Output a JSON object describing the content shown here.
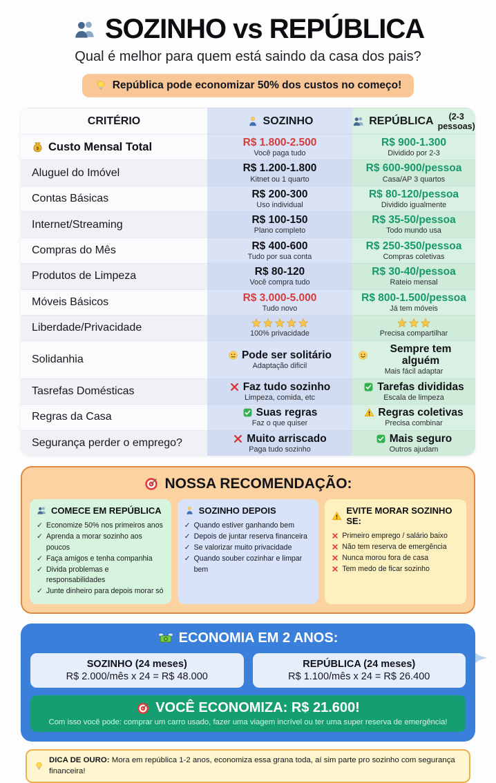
{
  "header": {
    "title_icon": "people-icon",
    "title": "SOZINHO vs REPÚBLICA",
    "subtitle": "Qual é melhor para quem está saindo da casa dos pais?",
    "badge_icon": "lightbulb-icon",
    "badge": "República pode economizar 50% dos custos no começo!"
  },
  "table": {
    "columns": [
      {
        "label": "CRITÉRIO"
      },
      {
        "label": "SOZINHO",
        "icon": "person-icon"
      },
      {
        "label": "REPÚBLICA",
        "suffix": "(2-3 pessoas)",
        "icon": "people-icon"
      }
    ],
    "rows": [
      {
        "criterion": "Custo Mensal Total",
        "criterion_icon": "money-bag-icon",
        "bold": true,
        "sozinho": {
          "value": "R$ 1.800-2.500",
          "style": "red",
          "note": "Você paga tudo"
        },
        "republica": {
          "value": "R$ 900-1.300",
          "style": "green",
          "note": "Dividido por 2-3"
        }
      },
      {
        "criterion": "Aluguel do Imóvel",
        "sozinho": {
          "value": "R$ 1.200-1.800",
          "style": "dark",
          "note": "Kitnet ou 1 quarto"
        },
        "republica": {
          "value": "R$ 600-900/pessoa",
          "style": "green",
          "note": "Casa/AP 3 quartos"
        }
      },
      {
        "criterion": "Contas Básicas",
        "sozinho": {
          "value": "R$ 200-300",
          "style": "dark",
          "note": "Uso individual"
        },
        "republica": {
          "value": "R$ 80-120/pessoa",
          "style": "green",
          "note": "Dividido igualmente"
        }
      },
      {
        "criterion": "Internet/Streaming",
        "sozinho": {
          "value": "R$ 100-150",
          "style": "dark",
          "note": "Plano completo"
        },
        "republica": {
          "value": "R$ 35-50/pessoa",
          "style": "green",
          "note": "Todo mundo usa"
        }
      },
      {
        "criterion": "Compras do Mês",
        "sozinho": {
          "value": "R$ 400-600",
          "style": "dark",
          "note": "Tudo por sua conta"
        },
        "republica": {
          "value": "R$ 250-350/pessoa",
          "style": "green",
          "note": "Compras coletivas"
        }
      },
      {
        "criterion": "Produtos de Limpeza",
        "sozinho": {
          "value": "R$ 80-120",
          "style": "dark",
          "note": "Você compra tudo"
        },
        "republica": {
          "value": "R$ 30-40/pessoa",
          "style": "green",
          "note": "Rateio mensal"
        }
      },
      {
        "criterion": "Móveis Básicos",
        "sozinho": {
          "value": "R$ 3.000-5.000",
          "style": "red",
          "note": "Tudo novo"
        },
        "republica": {
          "value": "R$ 800-1.500/pessoa",
          "style": "green",
          "note": "Já tem móveis"
        }
      },
      {
        "criterion": "Liberdade/Privacidade",
        "sozinho": {
          "stars": 5,
          "note": "100% privacidade"
        },
        "republica": {
          "stars": 3,
          "note": "Precisa compartilhar"
        }
      },
      {
        "criterion": "Solidanhia",
        "sozinho": {
          "icon": "neutral-face-icon",
          "value": "Pode ser solitário",
          "style": "dark",
          "note": "Adaptação dificil"
        },
        "republica": {
          "icon": "smile-face-icon",
          "value": "Sempre tem alguém",
          "style": "dark",
          "note": "Mais fácil adaptar"
        }
      },
      {
        "criterion": "Tasrefas Domésticas",
        "sozinho": {
          "icon": "cross-icon",
          "value": "Faz tudo sozinho",
          "style": "dark",
          "note": "Limpeza, comida, etc"
        },
        "republica": {
          "icon": "check-box-icon",
          "value": "Tarefas divididas",
          "style": "dark",
          "note": "Escala de limpeza"
        }
      },
      {
        "criterion": "Regras da Casa",
        "sozinho": {
          "icon": "check-box-icon",
          "value": "Suas regras",
          "style": "dark",
          "note": "Faz o que quiser"
        },
        "republica": {
          "icon": "warning-icon",
          "value": "Regras coletivas",
          "style": "dark",
          "note": "Precisa combinar"
        }
      },
      {
        "criterion": "Segurança perder o emprego?",
        "sozinho": {
          "icon": "cross-icon",
          "value": "Muito arriscado",
          "style": "dark",
          "note": "Paga tudo sozinho"
        },
        "republica": {
          "icon": "check-box-icon",
          "value": "Mais seguro",
          "style": "dark",
          "note": "Outros ajudam"
        }
      }
    ]
  },
  "recommendation": {
    "title_icon": "target-icon",
    "title": "NOSSA RECOMENDAÇÃO:",
    "cards": [
      {
        "icon": "people-icon",
        "title": "COMECE EM REPÚBLICA",
        "theme": "green",
        "bullet": "check",
        "items": [
          "Economize 50% nos primeiros anos",
          "Aprenda a morar sozinho aos poucos",
          "Faça amigos e tenha companhia",
          "Divida problemas e responsabilidades",
          "Junte dinheiro para depois morar só"
        ]
      },
      {
        "icon": "person-icon",
        "title": "SOZINHO DEPOIS",
        "theme": "blue",
        "bullet": "check",
        "items": [
          "Quando estiver ganhando bem",
          "Depois de juntar reserva financeira",
          "Se valorizar muito privacidade",
          "Quando souber cozinhar e limpar bem"
        ]
      },
      {
        "icon": "warning-icon",
        "title": "EVITE MORAR SOZINHO SE:",
        "theme": "yellow",
        "bullet": "cross",
        "items": [
          "Primeiro emprego / salário baixo",
          "Não tem reserva de emergência",
          "Nunca morou fora de casa",
          "Tem medo de ficar sozinho"
        ]
      }
    ]
  },
  "economy": {
    "title_icon": "flying-money-icon",
    "title": "ECONOMIA EM 2 ANOS:",
    "cards": [
      {
        "title": "SOZINHO (24 meses)",
        "calc": "R$ 2.000/mês x 24 = R$ 48.000"
      },
      {
        "title": "REPÚBLICA (24 meses)",
        "calc": "R$ 1.100/mês x 24 = R$ 26.400"
      }
    ],
    "banner": {
      "title_icon": "target-icon",
      "title": "VOCÊ ECONOMIZA: R$ 21.600!",
      "subtitle": "Com isso você pode: comprar um carro usado, fazer uma viagem incrível ou ter uma super reserva de emergência!"
    }
  },
  "tip": {
    "icon": "lightbulb-icon",
    "label": "DICA DE OURO:",
    "text": "Mora em república 1-2 anos, economiza essa grana toda, aí sim parte pro sozinho com segurança financeira!"
  },
  "colors": {
    "red_value": "#d63c3c",
    "green_value": "#169a67",
    "sozinho_column": "#dae3f6",
    "republica_column": "#d9f1e2",
    "badge_peach": "#f8c795",
    "recommendation_peach": "#fbd2a0",
    "economy_blue": "#3a7fd9",
    "banner_green": "#149e72",
    "tip_yellow": "#fdf6cf",
    "star_gold": "#f8c64a"
  }
}
